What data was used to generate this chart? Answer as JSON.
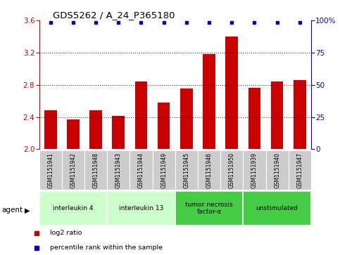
{
  "title": "GDS5262 / A_24_P365180",
  "samples": [
    "GSM1151941",
    "GSM1151942",
    "GSM1151948",
    "GSM1151943",
    "GSM1151944",
    "GSM1151949",
    "GSM1151945",
    "GSM1151946",
    "GSM1151950",
    "GSM1151939",
    "GSM1151940",
    "GSM1151947"
  ],
  "log2_ratio": [
    2.48,
    2.37,
    2.48,
    2.41,
    2.84,
    2.58,
    2.75,
    3.18,
    3.4,
    2.76,
    2.84,
    2.86
  ],
  "percentile": [
    100,
    100,
    100,
    100,
    100,
    100,
    100,
    100,
    100,
    100,
    100,
    100
  ],
  "bar_color": "#cc0000",
  "percentile_color": "#0000cc",
  "ylim_left": [
    2.0,
    3.6
  ],
  "ylim_right": [
    0,
    100
  ],
  "yticks_left": [
    2.0,
    2.4,
    2.8,
    3.2,
    3.6
  ],
  "yticks_right": [
    0,
    25,
    50,
    75,
    100
  ],
  "groups": [
    {
      "label": "interleukin 4",
      "start": 0,
      "end": 3,
      "color": "#ccffcc"
    },
    {
      "label": "interleukin 13",
      "start": 3,
      "end": 6,
      "color": "#ccffcc"
    },
    {
      "label": "tumor necrosis\nfactor-α",
      "start": 6,
      "end": 9,
      "color": "#44cc44"
    },
    {
      "label": "unstimulated",
      "start": 9,
      "end": 12,
      "color": "#44cc44"
    }
  ],
  "left_axis_color": "#cc0000",
  "right_axis_color": "#0000cc",
  "tick_area_color": "#cccccc",
  "legend_items": [
    {
      "label": "log2 ratio",
      "color": "#cc0000"
    },
    {
      "label": "percentile rank within the sample",
      "color": "#0000cc"
    }
  ]
}
